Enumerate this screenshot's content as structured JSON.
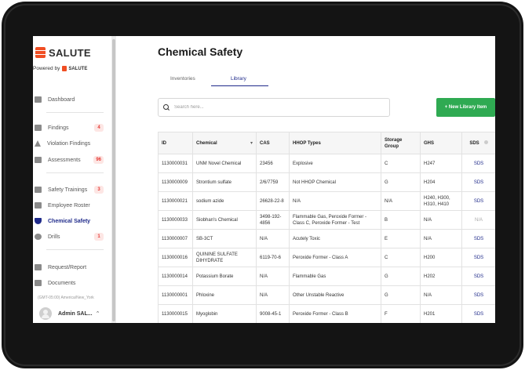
{
  "brand": {
    "name": "SALUTE",
    "powered_by": "Powered by",
    "powered_brand": "SALUTE"
  },
  "nav": [
    {
      "id": "dashboard",
      "label": "Dashboard",
      "icon": "dashboard-icon",
      "badge": ""
    },
    {
      "id": "findings",
      "label": "Findings",
      "icon": "findings-icon",
      "badge": "4"
    },
    {
      "id": "violation-findings",
      "label": "Violation Findings",
      "icon": "warning-icon",
      "badge": ""
    },
    {
      "id": "assessments",
      "label": "Assessments",
      "icon": "assessment-icon",
      "badge": "96"
    },
    {
      "id": "safety-trainings",
      "label": "Safety Trainings",
      "icon": "graduation-icon",
      "badge": "3"
    },
    {
      "id": "employee-roster",
      "label": "Employee Roster",
      "icon": "people-icon",
      "badge": ""
    },
    {
      "id": "chemical-safety",
      "label": "Chemical Safety",
      "icon": "shield-icon",
      "badge": ""
    },
    {
      "id": "drills",
      "label": "Drills",
      "icon": "running-icon",
      "badge": "1"
    },
    {
      "id": "request-report",
      "label": "Request/Report",
      "icon": "message-icon",
      "badge": ""
    },
    {
      "id": "documents",
      "label": "Documents",
      "icon": "document-icon",
      "badge": ""
    }
  ],
  "timezone": "(GMT-05:00) America/New_York",
  "user": {
    "name": "Admin SAL..."
  },
  "page": {
    "title": "Chemical Safety",
    "tabs": [
      "Inventories",
      "Library"
    ],
    "active_tab": "Library",
    "search_placeholder": "Search here...",
    "new_button": "+ New Library Item"
  },
  "table": {
    "columns": [
      "ID",
      "Chemical",
      "CAS",
      "HHOP Types",
      "Storage Group",
      "GHS",
      "SDS"
    ],
    "rows": [
      [
        "1130000031",
        "UNM Novel Chemical",
        "23456",
        "Explosive",
        "C",
        "H247",
        "SDS"
      ],
      [
        "1130000009",
        "Strontium sulfate",
        "2/6/7759",
        "Not HHOP Chemical",
        "G",
        "H204",
        "SDS"
      ],
      [
        "1130000021",
        "sodium azide",
        "26628-22-8",
        "N/A",
        "N/A",
        "H240, H300, H310, H410",
        "SDS"
      ],
      [
        "1130000033",
        "Siobhan's Chemical",
        "3498-192-4856",
        "Flammable Gas, Peroxide Former - Class C, Peroxide Former - Test",
        "B",
        "N/A",
        "N/A"
      ],
      [
        "1130000007",
        "SB-3CT",
        "N/A",
        "Acutely Toxic",
        "E",
        "N/A",
        "SDS"
      ],
      [
        "1130000016",
        "QUININE SULFATE DIHYDRATE",
        "6119-70-6",
        "Peroxide Former - Class A",
        "C",
        "H200",
        "SDS"
      ],
      [
        "1130000014",
        "Potassium Borate",
        "N/A",
        "Flammable Gas",
        "G",
        "H202",
        "SDS"
      ],
      [
        "1130000001",
        "Phloxine",
        "N/A",
        "Other Unstable Reactive",
        "G",
        "N/A",
        "SDS"
      ],
      [
        "1130000015",
        "Myoglobin",
        "9008-45-1",
        "Peroxide Former - Class B",
        "F",
        "H201",
        "SDS"
      ]
    ]
  }
}
